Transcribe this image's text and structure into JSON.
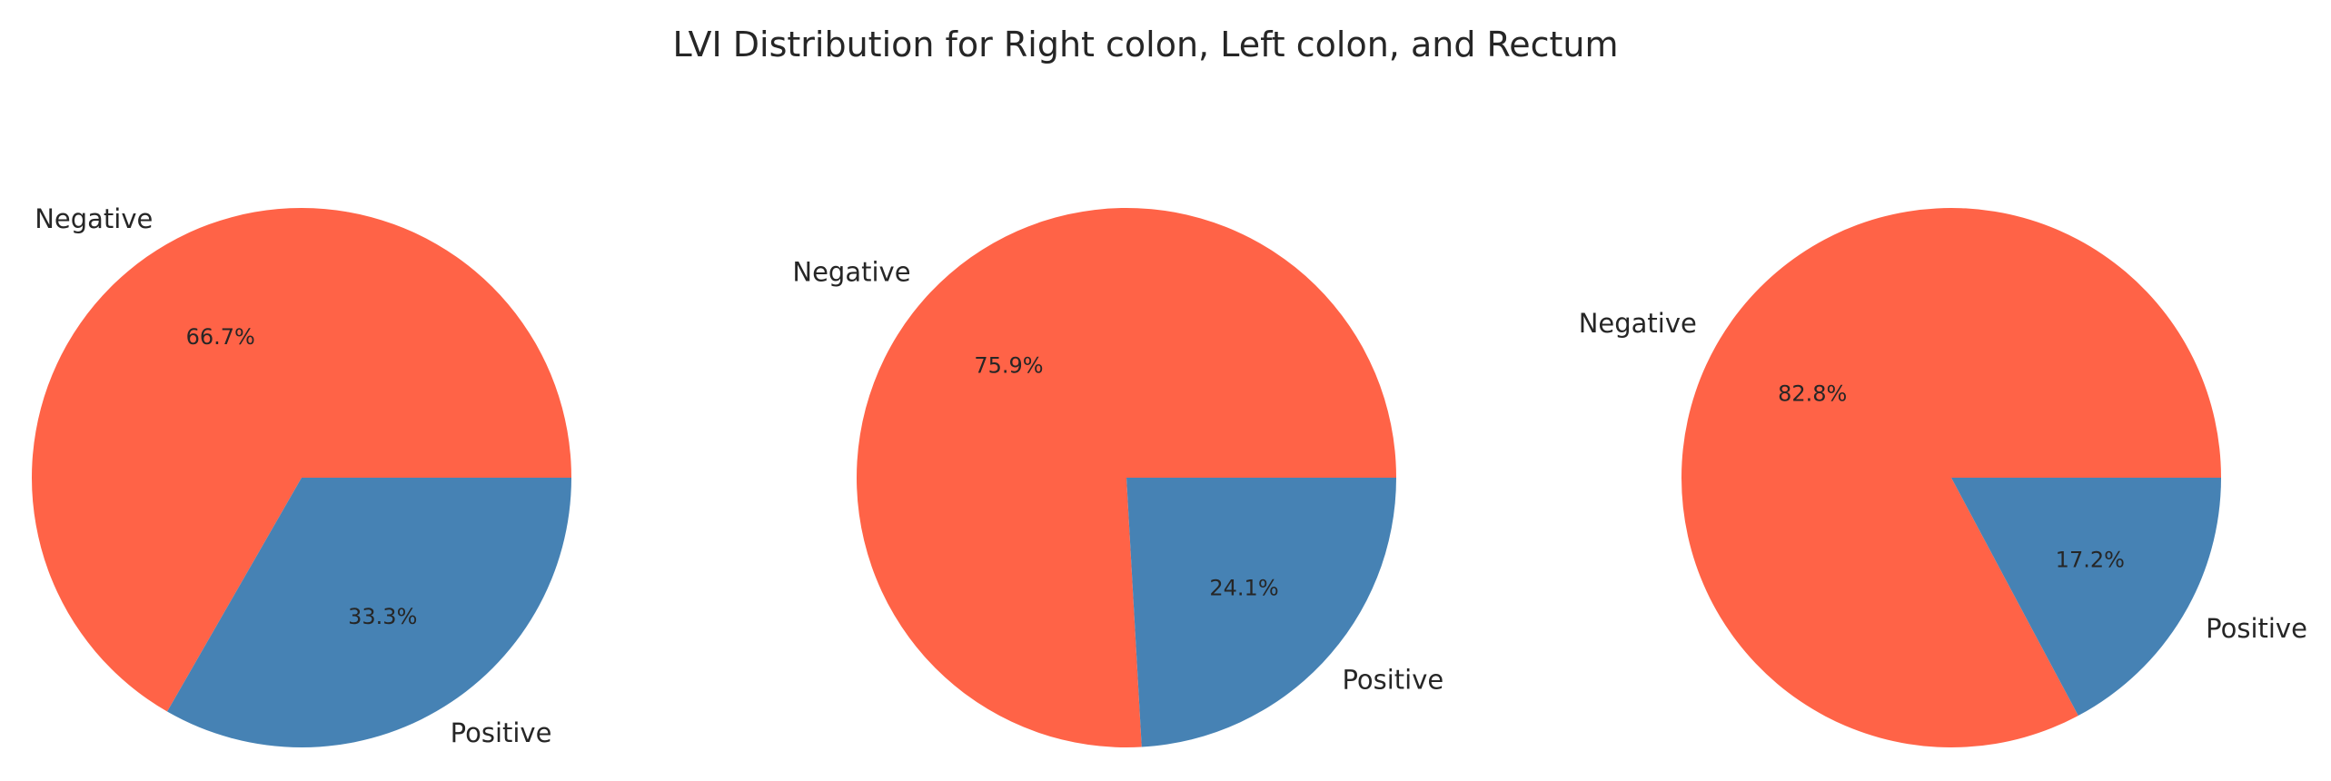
{
  "chart_data": {
    "title": "LVI Distribution for Right colon, Left colon, and Rectum",
    "type": "pie",
    "colors": {
      "Negative": "#ff6347",
      "Positive": "#4682b4"
    },
    "pies": [
      {
        "slices": [
          {
            "label": "Negative",
            "value": 66.7,
            "pct_text": "66.7%"
          },
          {
            "label": "Positive",
            "value": 33.3,
            "pct_text": "33.3%"
          }
        ]
      },
      {
        "slices": [
          {
            "label": "Negative",
            "value": 75.9,
            "pct_text": "75.9%"
          },
          {
            "label": "Positive",
            "value": 24.1,
            "pct_text": "24.1%"
          }
        ]
      },
      {
        "slices": [
          {
            "label": "Negative",
            "value": 82.8,
            "pct_text": "82.8%"
          },
          {
            "label": "Positive",
            "value": 17.2,
            "pct_text": "17.2%"
          }
        ]
      }
    ]
  }
}
